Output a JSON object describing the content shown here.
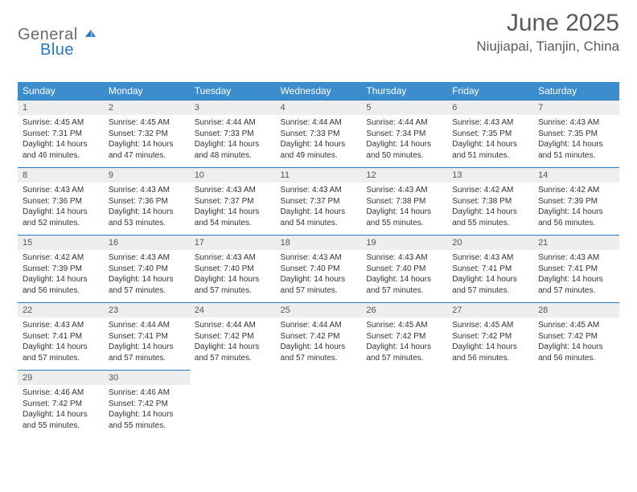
{
  "logo": {
    "word1": "General",
    "word2": "Blue"
  },
  "title": "June 2025",
  "location": "Niujiapai, Tianjin, China",
  "columns": [
    "Sunday",
    "Monday",
    "Tuesday",
    "Wednesday",
    "Thursday",
    "Friday",
    "Saturday"
  ],
  "colors": {
    "header_bg": "#3c8dce",
    "header_text": "#ffffff",
    "rule": "#2a78bd",
    "daynum_bg": "#eeeeee",
    "text": "#333333",
    "title_text": "#5a5a5a",
    "logo_gray": "#6a6a6a",
    "logo_blue": "#2a78bd",
    "page_bg": "#ffffff"
  },
  "weeks": [
    [
      {
        "n": "1",
        "sr": "Sunrise: 4:45 AM",
        "ss": "Sunset: 7:31 PM",
        "d1": "Daylight: 14 hours",
        "d2": "and 46 minutes."
      },
      {
        "n": "2",
        "sr": "Sunrise: 4:45 AM",
        "ss": "Sunset: 7:32 PM",
        "d1": "Daylight: 14 hours",
        "d2": "and 47 minutes."
      },
      {
        "n": "3",
        "sr": "Sunrise: 4:44 AM",
        "ss": "Sunset: 7:33 PM",
        "d1": "Daylight: 14 hours",
        "d2": "and 48 minutes."
      },
      {
        "n": "4",
        "sr": "Sunrise: 4:44 AM",
        "ss": "Sunset: 7:33 PM",
        "d1": "Daylight: 14 hours",
        "d2": "and 49 minutes."
      },
      {
        "n": "5",
        "sr": "Sunrise: 4:44 AM",
        "ss": "Sunset: 7:34 PM",
        "d1": "Daylight: 14 hours",
        "d2": "and 50 minutes."
      },
      {
        "n": "6",
        "sr": "Sunrise: 4:43 AM",
        "ss": "Sunset: 7:35 PM",
        "d1": "Daylight: 14 hours",
        "d2": "and 51 minutes."
      },
      {
        "n": "7",
        "sr": "Sunrise: 4:43 AM",
        "ss": "Sunset: 7:35 PM",
        "d1": "Daylight: 14 hours",
        "d2": "and 51 minutes."
      }
    ],
    [
      {
        "n": "8",
        "sr": "Sunrise: 4:43 AM",
        "ss": "Sunset: 7:36 PM",
        "d1": "Daylight: 14 hours",
        "d2": "and 52 minutes."
      },
      {
        "n": "9",
        "sr": "Sunrise: 4:43 AM",
        "ss": "Sunset: 7:36 PM",
        "d1": "Daylight: 14 hours",
        "d2": "and 53 minutes."
      },
      {
        "n": "10",
        "sr": "Sunrise: 4:43 AM",
        "ss": "Sunset: 7:37 PM",
        "d1": "Daylight: 14 hours",
        "d2": "and 54 minutes."
      },
      {
        "n": "11",
        "sr": "Sunrise: 4:43 AM",
        "ss": "Sunset: 7:37 PM",
        "d1": "Daylight: 14 hours",
        "d2": "and 54 minutes."
      },
      {
        "n": "12",
        "sr": "Sunrise: 4:43 AM",
        "ss": "Sunset: 7:38 PM",
        "d1": "Daylight: 14 hours",
        "d2": "and 55 minutes."
      },
      {
        "n": "13",
        "sr": "Sunrise: 4:42 AM",
        "ss": "Sunset: 7:38 PM",
        "d1": "Daylight: 14 hours",
        "d2": "and 55 minutes."
      },
      {
        "n": "14",
        "sr": "Sunrise: 4:42 AM",
        "ss": "Sunset: 7:39 PM",
        "d1": "Daylight: 14 hours",
        "d2": "and 56 minutes."
      }
    ],
    [
      {
        "n": "15",
        "sr": "Sunrise: 4:42 AM",
        "ss": "Sunset: 7:39 PM",
        "d1": "Daylight: 14 hours",
        "d2": "and 56 minutes."
      },
      {
        "n": "16",
        "sr": "Sunrise: 4:43 AM",
        "ss": "Sunset: 7:40 PM",
        "d1": "Daylight: 14 hours",
        "d2": "and 57 minutes."
      },
      {
        "n": "17",
        "sr": "Sunrise: 4:43 AM",
        "ss": "Sunset: 7:40 PM",
        "d1": "Daylight: 14 hours",
        "d2": "and 57 minutes."
      },
      {
        "n": "18",
        "sr": "Sunrise: 4:43 AM",
        "ss": "Sunset: 7:40 PM",
        "d1": "Daylight: 14 hours",
        "d2": "and 57 minutes."
      },
      {
        "n": "19",
        "sr": "Sunrise: 4:43 AM",
        "ss": "Sunset: 7:40 PM",
        "d1": "Daylight: 14 hours",
        "d2": "and 57 minutes."
      },
      {
        "n": "20",
        "sr": "Sunrise: 4:43 AM",
        "ss": "Sunset: 7:41 PM",
        "d1": "Daylight: 14 hours",
        "d2": "and 57 minutes."
      },
      {
        "n": "21",
        "sr": "Sunrise: 4:43 AM",
        "ss": "Sunset: 7:41 PM",
        "d1": "Daylight: 14 hours",
        "d2": "and 57 minutes."
      }
    ],
    [
      {
        "n": "22",
        "sr": "Sunrise: 4:43 AM",
        "ss": "Sunset: 7:41 PM",
        "d1": "Daylight: 14 hours",
        "d2": "and 57 minutes."
      },
      {
        "n": "23",
        "sr": "Sunrise: 4:44 AM",
        "ss": "Sunset: 7:41 PM",
        "d1": "Daylight: 14 hours",
        "d2": "and 57 minutes."
      },
      {
        "n": "24",
        "sr": "Sunrise: 4:44 AM",
        "ss": "Sunset: 7:42 PM",
        "d1": "Daylight: 14 hours",
        "d2": "and 57 minutes."
      },
      {
        "n": "25",
        "sr": "Sunrise: 4:44 AM",
        "ss": "Sunset: 7:42 PM",
        "d1": "Daylight: 14 hours",
        "d2": "and 57 minutes."
      },
      {
        "n": "26",
        "sr": "Sunrise: 4:45 AM",
        "ss": "Sunset: 7:42 PM",
        "d1": "Daylight: 14 hours",
        "d2": "and 57 minutes."
      },
      {
        "n": "27",
        "sr": "Sunrise: 4:45 AM",
        "ss": "Sunset: 7:42 PM",
        "d1": "Daylight: 14 hours",
        "d2": "and 56 minutes."
      },
      {
        "n": "28",
        "sr": "Sunrise: 4:45 AM",
        "ss": "Sunset: 7:42 PM",
        "d1": "Daylight: 14 hours",
        "d2": "and 56 minutes."
      }
    ],
    [
      {
        "n": "29",
        "sr": "Sunrise: 4:46 AM",
        "ss": "Sunset: 7:42 PM",
        "d1": "Daylight: 14 hours",
        "d2": "and 55 minutes."
      },
      {
        "n": "30",
        "sr": "Sunrise: 4:46 AM",
        "ss": "Sunset: 7:42 PM",
        "d1": "Daylight: 14 hours",
        "d2": "and 55 minutes."
      },
      null,
      null,
      null,
      null,
      null
    ]
  ]
}
